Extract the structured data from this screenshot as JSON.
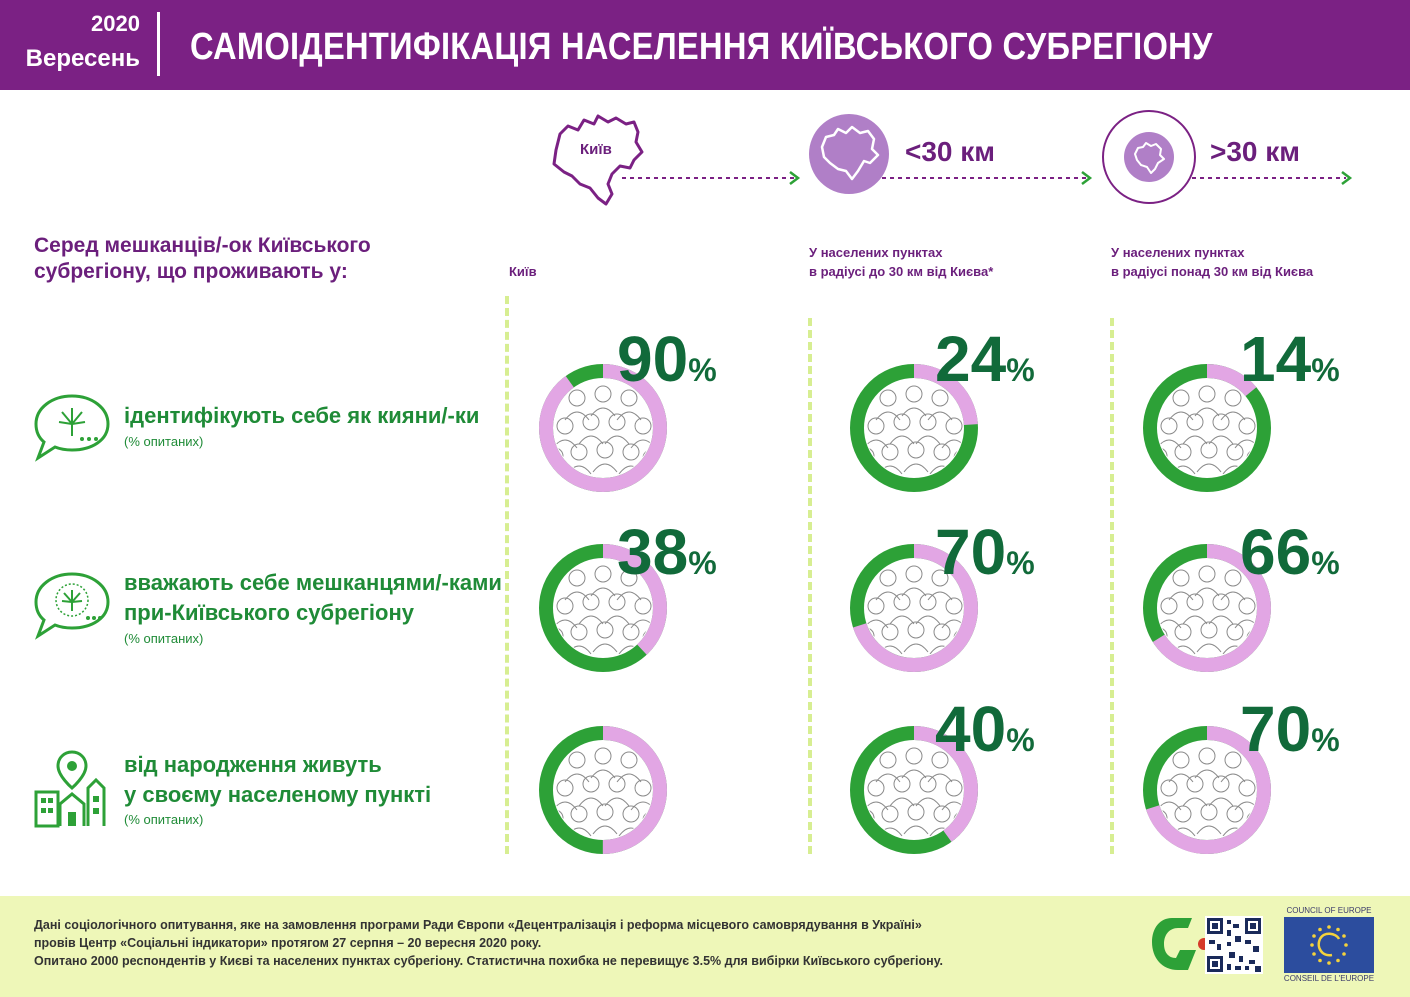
{
  "header": {
    "year": "2020",
    "month": "Вересень",
    "title": "САМОІДЕНТИФІКАЦІЯ НАСЕЛЕННЯ КИЇВСЬКОГО СУБРЕГІОНУ"
  },
  "top_row": {
    "kyiv_map_label": "Київ",
    "near_label": "<30 км",
    "far_label": ">30 км"
  },
  "intro": "Серед мешканців/-ок Київського субрегіону, що проживають у:",
  "columns": [
    {
      "id": "kyiv",
      "line1": "Київ",
      "line2": ""
    },
    {
      "id": "near",
      "line1": "У населених пунктах",
      "line2": "в радіусі до 30 км від Києва*"
    },
    {
      "id": "far",
      "line1": "У населених пунктах",
      "line2": "в радіусі понад 30 км від Києва"
    }
  ],
  "rows": [
    {
      "line1": "ідентифікують себе як кияни/-ки",
      "line2": "",
      "note": "(% опитаних)",
      "icon": "chestnut-speech-icon"
    },
    {
      "line1": "вважають себе мешканцями/-ками",
      "line2": "при-Київського субрегіону",
      "note": "(% опитаних)",
      "icon": "chestnut-speech-dashed-icon"
    },
    {
      "line1": "від народження живуть",
      "line2": "у своєму населеному пункті",
      "note": "(% опитаних)",
      "icon": "city-pin-icon"
    }
  ],
  "percent_sign": "%",
  "chart_data": {
    "type": "donut-grid",
    "title": "САМОІДЕНТИФІКАЦІЯ НАСЕЛЕННЯ КИЇВСЬКОГО СУБРЕГІОНУ",
    "unit": "% опитаних",
    "categories": [
      "Київ",
      "<30 км",
      ">30 км"
    ],
    "series": [
      {
        "name": "ідентифікують себе як кияни/-ки",
        "values": [
          90,
          24,
          14
        ]
      },
      {
        "name": "вважають себе мешканцями/-ками при-Київського субрегіону",
        "values": [
          38,
          70,
          66
        ]
      },
      {
        "name": "від народження живуть у своєму населеному пункті",
        "values": [
          null,
          40,
          70
        ]
      }
    ],
    "display": [
      "90",
      "24",
      "14",
      "38",
      "70",
      "66",
      "",
      "40",
      "70"
    ],
    "colors": {
      "share": "#e2a6e4",
      "rest": "#2da137",
      "text": "#116a3a"
    }
  },
  "footer": {
    "line1": "Дані соціологічного опитування, яке на замовлення програми Ради Європи «Децентралізація і реформа місцевого самоврядування в Україні»",
    "line2": "провів Центр «Соціальні індикатори» протягом 27 серпня – 20 вересня 2020 року.",
    "line3": "Опитано 2000 респондентів у Києві та населених пунктах субрегіону. Статистична похибка не перевищує 3.5% для вибірки Київського субрегіону.",
    "coe_top": "COUNCIL OF EUROPE",
    "coe_bottom": "CONSEIL DE L'EUROPE"
  },
  "colors": {
    "header_bg": "#7b2184",
    "purple_text": "#6b1f7c",
    "green_text": "#1f8b37",
    "dark_green": "#116a3a",
    "lilac": "#e2a6e4",
    "footer_bg": "#eef7b8"
  }
}
